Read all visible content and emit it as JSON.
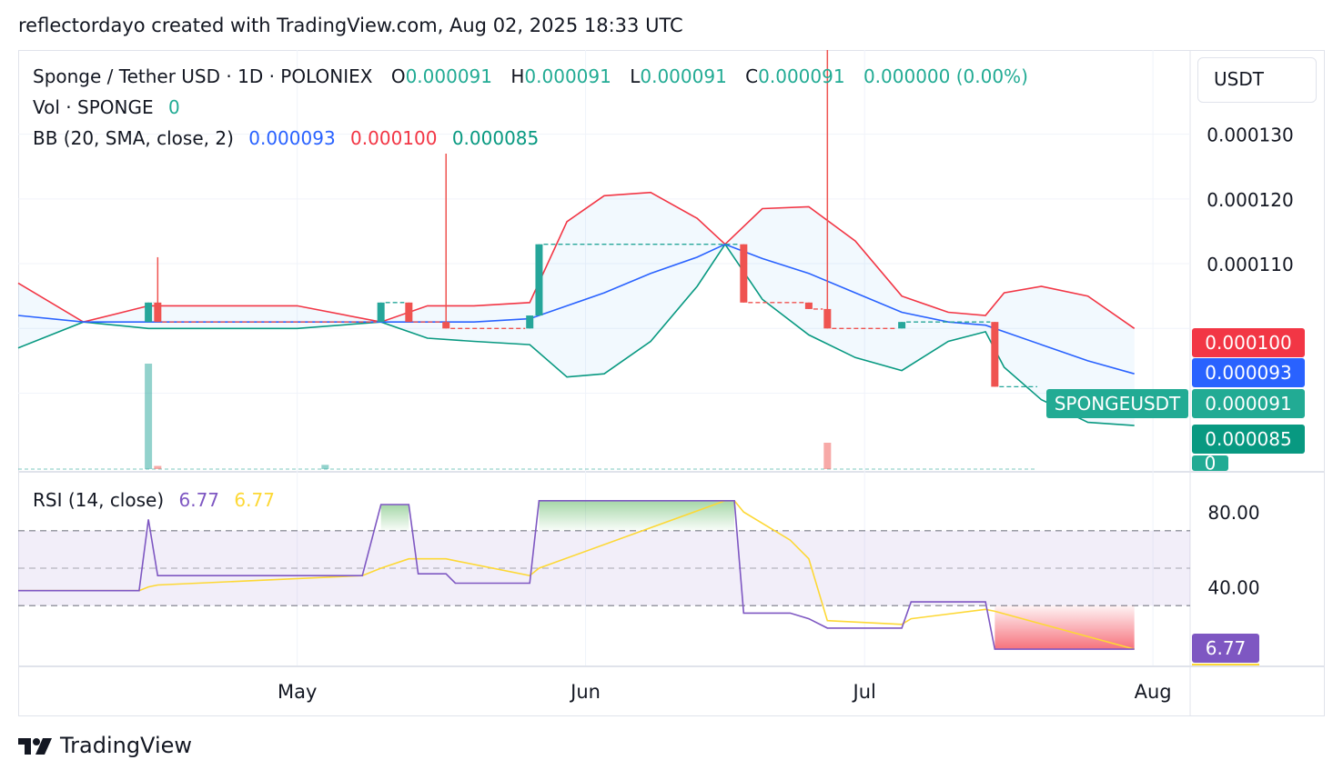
{
  "header": {
    "text": "reflectordayo created with TradingView.com, Aug 02, 2025 18:33 UTC"
  },
  "legend": {
    "symbol": "Sponge / Tether USD · 1D · POLONIEX",
    "o_label": "O",
    "o_value": "0.000091",
    "h_label": "H",
    "h_value": "0.000091",
    "l_label": "L",
    "l_value": "0.000091",
    "c_label": "C",
    "c_value": "0.000091",
    "change": "0.000000 (0.00%)",
    "vol_label": "Vol · SPONGE",
    "vol_value": "0",
    "bb_label": "BB (20, SMA, close, 2)",
    "bb_basis": "0.000093",
    "bb_upper": "0.000100",
    "bb_lower": "0.000085",
    "rsi_label": "RSI (14, close)",
    "rsi_value": "6.77",
    "rsi_ma_value": "6.77"
  },
  "unit_button": "USDT",
  "price_axis": {
    "ticks": [
      "0.000130",
      "0.000120",
      "0.000110"
    ],
    "badges": {
      "upper": "0.000100",
      "basis": "0.000093",
      "last": "0.000091",
      "lower": "0.000085",
      "vol": "0",
      "symbol_tag": "SPONGEUSDT"
    }
  },
  "rsi_axis": {
    "ticks": [
      "80.00",
      "40.00"
    ],
    "badge": "6.77"
  },
  "time_axis": {
    "labels": [
      "May",
      "Jun",
      "Jul",
      "Aug"
    ]
  },
  "colors": {
    "up": "#26a69a",
    "down": "#ef5350",
    "basis": "#2962ff",
    "upper": "#f23645",
    "lower": "#089981",
    "band_fill": "#2196f3",
    "rsi": "#7e57c2",
    "rsi_ma": "#fdd835"
  },
  "footer": {
    "brand": "TradingView"
  },
  "chart_data": [
    {
      "type": "candlestick",
      "title": "Sponge / Tether USD · 1D · POLONIEX",
      "y_unit": "USDT",
      "ylim": [
        7.8e-05,
        0.000143
      ],
      "x_range": [
        "2025-04-01",
        "2025-08-05"
      ],
      "candles": [
        {
          "date": "2025-04-15",
          "o": 0.000101,
          "h": 0.000104,
          "l": 0.000101,
          "c": 0.000104
        },
        {
          "date": "2025-04-16",
          "o": 0.000104,
          "h": 0.000111,
          "l": 0.000101,
          "c": 0.000101
        },
        {
          "date": "2025-05-10",
          "o": 0.000101,
          "h": 0.000104,
          "l": 0.000101,
          "c": 0.000104
        },
        {
          "date": "2025-05-13",
          "o": 0.000104,
          "h": 0.000104,
          "l": 0.000101,
          "c": 0.000101
        },
        {
          "date": "2025-05-17",
          "o": 0.000101,
          "h": 0.000127,
          "l": 0.0001,
          "c": 0.0001
        },
        {
          "date": "2025-05-26",
          "o": 0.0001,
          "h": 0.000102,
          "l": 0.0001,
          "c": 0.000102
        },
        {
          "date": "2025-05-27",
          "o": 0.000102,
          "h": 0.000113,
          "l": 0.000102,
          "c": 0.000113
        },
        {
          "date": "2025-06-18",
          "o": 0.000113,
          "h": 0.000113,
          "l": 0.000104,
          "c": 0.000104
        },
        {
          "date": "2025-06-25",
          "o": 0.000104,
          "h": 0.000104,
          "l": 0.000103,
          "c": 0.000103
        },
        {
          "date": "2025-06-27",
          "o": 0.000103,
          "h": 0.000143,
          "l": 0.0001,
          "c": 0.0001
        },
        {
          "date": "2025-07-05",
          "o": 0.0001,
          "h": 0.000101,
          "l": 0.0001,
          "c": 0.000101
        },
        {
          "date": "2025-07-15",
          "o": 0.000101,
          "h": 0.000101,
          "l": 9.1e-05,
          "c": 9.1e-05
        }
      ],
      "volume": [
        {
          "date": "2025-04-15",
          "v": 1.0,
          "up": true
        },
        {
          "date": "2025-04-16",
          "v": 0.03,
          "up": false
        },
        {
          "date": "2025-05-04",
          "v": 0.04,
          "up": true
        },
        {
          "date": "2025-06-27",
          "v": 0.25,
          "up": false
        }
      ],
      "bollinger": {
        "x": [
          "2025-04-01",
          "2025-04-08",
          "2025-04-15",
          "2025-04-22",
          "2025-05-01",
          "2025-05-10",
          "2025-05-15",
          "2025-05-20",
          "2025-05-26",
          "2025-05-30",
          "2025-06-03",
          "2025-06-08",
          "2025-06-13",
          "2025-06-16",
          "2025-06-20",
          "2025-06-25",
          "2025-06-30",
          "2025-07-05",
          "2025-07-10",
          "2025-07-14",
          "2025-07-16",
          "2025-07-20",
          "2025-07-25",
          "2025-07-30"
        ],
        "basis": [
          0.000102,
          0.000101,
          0.000101,
          0.000101,
          0.000101,
          0.000101,
          0.000101,
          0.000101,
          0.0001015,
          0.0001035,
          0.0001055,
          0.0001085,
          0.000111,
          0.000113,
          0.0001108,
          0.0001085,
          0.0001055,
          0.0001025,
          0.000101,
          0.0001005,
          9.95e-05,
          9.75e-05,
          9.5e-05,
          9.3e-05
        ],
        "upper": [
          0.000107,
          0.000101,
          0.0001035,
          0.0001035,
          0.0001035,
          0.000101,
          0.0001035,
          0.0001035,
          0.000104,
          0.0001165,
          0.0001205,
          0.000121,
          0.000117,
          0.000113,
          0.0001185,
          0.0001188,
          0.0001135,
          0.000105,
          0.0001025,
          0.000102,
          0.0001055,
          0.0001065,
          0.000105,
          0.0001
        ],
        "lower": [
          9.7e-05,
          0.000101,
          0.0001,
          0.0001,
          0.0001,
          0.000101,
          9.85e-05,
          9.8e-05,
          9.75e-05,
          9.25e-05,
          9.3e-05,
          9.8e-05,
          0.0001065,
          0.000113,
          0.0001045,
          9.9e-05,
          9.55e-05,
          9.35e-05,
          9.8e-05,
          9.95e-05,
          9.4e-05,
          8.9e-05,
          8.55e-05,
          8.5e-05
        ]
      },
      "last_price": 9.1e-05
    },
    {
      "type": "line",
      "title": "RSI (14, close)",
      "ylim": [
        0,
        100
      ],
      "bands": {
        "upper": 70,
        "middle": 50,
        "lower": 30
      },
      "x": [
        "2025-04-01",
        "2025-04-14",
        "2025-04-15",
        "2025-04-16",
        "2025-05-08",
        "2025-05-10",
        "2025-05-13",
        "2025-05-14",
        "2025-05-17",
        "2025-05-18",
        "2025-05-26",
        "2025-05-27",
        "2025-06-16",
        "2025-06-17",
        "2025-06-18",
        "2025-06-23",
        "2025-06-25",
        "2025-06-27",
        "2025-07-05",
        "2025-07-06",
        "2025-07-14",
        "2025-07-15",
        "2025-07-30"
      ],
      "series": [
        {
          "values": [
            38,
            38,
            76,
            46,
            46,
            84,
            84,
            47,
            47,
            42,
            42,
            86,
            86,
            86,
            26,
            26,
            23,
            18,
            18,
            32,
            32,
            6.77,
            6.77
          ]
        },
        {
          "values": [
            38,
            38,
            40,
            41,
            46,
            50,
            55,
            55,
            55,
            54,
            46,
            50,
            86,
            86,
            80,
            65,
            55,
            22,
            20,
            23,
            28,
            27,
            6.77
          ]
        }
      ],
      "latest": 6.77
    }
  ]
}
